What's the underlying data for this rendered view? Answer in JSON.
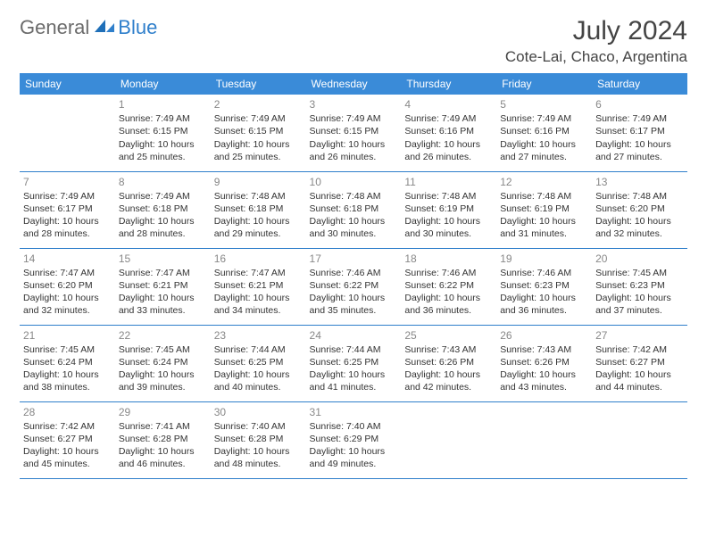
{
  "brand": {
    "general": "General",
    "blue": "Blue"
  },
  "title": "July 2024",
  "location": "Cote-Lai, Chaco, Argentina",
  "colors": {
    "header_bg": "#3a8bd8",
    "header_text": "#ffffff",
    "accent": "#2f7fcb",
    "daynum": "#888888",
    "text": "#333333"
  },
  "weekdays": [
    "Sunday",
    "Monday",
    "Tuesday",
    "Wednesday",
    "Thursday",
    "Friday",
    "Saturday"
  ],
  "weeks": [
    [
      null,
      {
        "n": "1",
        "sr": "Sunrise: 7:49 AM",
        "ss": "Sunset: 6:15 PM",
        "d1": "Daylight: 10 hours",
        "d2": "and 25 minutes."
      },
      {
        "n": "2",
        "sr": "Sunrise: 7:49 AM",
        "ss": "Sunset: 6:15 PM",
        "d1": "Daylight: 10 hours",
        "d2": "and 25 minutes."
      },
      {
        "n": "3",
        "sr": "Sunrise: 7:49 AM",
        "ss": "Sunset: 6:15 PM",
        "d1": "Daylight: 10 hours",
        "d2": "and 26 minutes."
      },
      {
        "n": "4",
        "sr": "Sunrise: 7:49 AM",
        "ss": "Sunset: 6:16 PM",
        "d1": "Daylight: 10 hours",
        "d2": "and 26 minutes."
      },
      {
        "n": "5",
        "sr": "Sunrise: 7:49 AM",
        "ss": "Sunset: 6:16 PM",
        "d1": "Daylight: 10 hours",
        "d2": "and 27 minutes."
      },
      {
        "n": "6",
        "sr": "Sunrise: 7:49 AM",
        "ss": "Sunset: 6:17 PM",
        "d1": "Daylight: 10 hours",
        "d2": "and 27 minutes."
      }
    ],
    [
      {
        "n": "7",
        "sr": "Sunrise: 7:49 AM",
        "ss": "Sunset: 6:17 PM",
        "d1": "Daylight: 10 hours",
        "d2": "and 28 minutes."
      },
      {
        "n": "8",
        "sr": "Sunrise: 7:49 AM",
        "ss": "Sunset: 6:18 PM",
        "d1": "Daylight: 10 hours",
        "d2": "and 28 minutes."
      },
      {
        "n": "9",
        "sr": "Sunrise: 7:48 AM",
        "ss": "Sunset: 6:18 PM",
        "d1": "Daylight: 10 hours",
        "d2": "and 29 minutes."
      },
      {
        "n": "10",
        "sr": "Sunrise: 7:48 AM",
        "ss": "Sunset: 6:18 PM",
        "d1": "Daylight: 10 hours",
        "d2": "and 30 minutes."
      },
      {
        "n": "11",
        "sr": "Sunrise: 7:48 AM",
        "ss": "Sunset: 6:19 PM",
        "d1": "Daylight: 10 hours",
        "d2": "and 30 minutes."
      },
      {
        "n": "12",
        "sr": "Sunrise: 7:48 AM",
        "ss": "Sunset: 6:19 PM",
        "d1": "Daylight: 10 hours",
        "d2": "and 31 minutes."
      },
      {
        "n": "13",
        "sr": "Sunrise: 7:48 AM",
        "ss": "Sunset: 6:20 PM",
        "d1": "Daylight: 10 hours",
        "d2": "and 32 minutes."
      }
    ],
    [
      {
        "n": "14",
        "sr": "Sunrise: 7:47 AM",
        "ss": "Sunset: 6:20 PM",
        "d1": "Daylight: 10 hours",
        "d2": "and 32 minutes."
      },
      {
        "n": "15",
        "sr": "Sunrise: 7:47 AM",
        "ss": "Sunset: 6:21 PM",
        "d1": "Daylight: 10 hours",
        "d2": "and 33 minutes."
      },
      {
        "n": "16",
        "sr": "Sunrise: 7:47 AM",
        "ss": "Sunset: 6:21 PM",
        "d1": "Daylight: 10 hours",
        "d2": "and 34 minutes."
      },
      {
        "n": "17",
        "sr": "Sunrise: 7:46 AM",
        "ss": "Sunset: 6:22 PM",
        "d1": "Daylight: 10 hours",
        "d2": "and 35 minutes."
      },
      {
        "n": "18",
        "sr": "Sunrise: 7:46 AM",
        "ss": "Sunset: 6:22 PM",
        "d1": "Daylight: 10 hours",
        "d2": "and 36 minutes."
      },
      {
        "n": "19",
        "sr": "Sunrise: 7:46 AM",
        "ss": "Sunset: 6:23 PM",
        "d1": "Daylight: 10 hours",
        "d2": "and 36 minutes."
      },
      {
        "n": "20",
        "sr": "Sunrise: 7:45 AM",
        "ss": "Sunset: 6:23 PM",
        "d1": "Daylight: 10 hours",
        "d2": "and 37 minutes."
      }
    ],
    [
      {
        "n": "21",
        "sr": "Sunrise: 7:45 AM",
        "ss": "Sunset: 6:24 PM",
        "d1": "Daylight: 10 hours",
        "d2": "and 38 minutes."
      },
      {
        "n": "22",
        "sr": "Sunrise: 7:45 AM",
        "ss": "Sunset: 6:24 PM",
        "d1": "Daylight: 10 hours",
        "d2": "and 39 minutes."
      },
      {
        "n": "23",
        "sr": "Sunrise: 7:44 AM",
        "ss": "Sunset: 6:25 PM",
        "d1": "Daylight: 10 hours",
        "d2": "and 40 minutes."
      },
      {
        "n": "24",
        "sr": "Sunrise: 7:44 AM",
        "ss": "Sunset: 6:25 PM",
        "d1": "Daylight: 10 hours",
        "d2": "and 41 minutes."
      },
      {
        "n": "25",
        "sr": "Sunrise: 7:43 AM",
        "ss": "Sunset: 6:26 PM",
        "d1": "Daylight: 10 hours",
        "d2": "and 42 minutes."
      },
      {
        "n": "26",
        "sr": "Sunrise: 7:43 AM",
        "ss": "Sunset: 6:26 PM",
        "d1": "Daylight: 10 hours",
        "d2": "and 43 minutes."
      },
      {
        "n": "27",
        "sr": "Sunrise: 7:42 AM",
        "ss": "Sunset: 6:27 PM",
        "d1": "Daylight: 10 hours",
        "d2": "and 44 minutes."
      }
    ],
    [
      {
        "n": "28",
        "sr": "Sunrise: 7:42 AM",
        "ss": "Sunset: 6:27 PM",
        "d1": "Daylight: 10 hours",
        "d2": "and 45 minutes."
      },
      {
        "n": "29",
        "sr": "Sunrise: 7:41 AM",
        "ss": "Sunset: 6:28 PM",
        "d1": "Daylight: 10 hours",
        "d2": "and 46 minutes."
      },
      {
        "n": "30",
        "sr": "Sunrise: 7:40 AM",
        "ss": "Sunset: 6:28 PM",
        "d1": "Daylight: 10 hours",
        "d2": "and 48 minutes."
      },
      {
        "n": "31",
        "sr": "Sunrise: 7:40 AM",
        "ss": "Sunset: 6:29 PM",
        "d1": "Daylight: 10 hours",
        "d2": "and 49 minutes."
      },
      null,
      null,
      null
    ]
  ]
}
